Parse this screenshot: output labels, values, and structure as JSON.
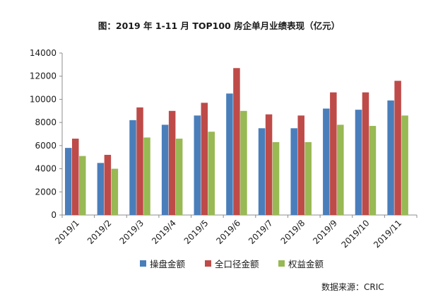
{
  "chart_data": {
    "type": "bar",
    "title": "图：2019 年 1-11 月 TOP100 房企单月业绩表现（亿元）",
    "categories": [
      "2019/1",
      "2019/2",
      "2019/3",
      "2019/4",
      "2019/5",
      "2019/6",
      "2019/7",
      "2019/8",
      "2019/9",
      "2019/10",
      "2019/11"
    ],
    "series": [
      {
        "name": "操盘金额",
        "color": "#4a7ebb",
        "values": [
          5800,
          4500,
          8200,
          7800,
          8600,
          10500,
          7500,
          7500,
          9200,
          9100,
          9900
        ]
      },
      {
        "name": "全口径金额",
        "color": "#be4b48",
        "values": [
          6600,
          5200,
          9300,
          9000,
          9700,
          12700,
          8700,
          8600,
          10600,
          10600,
          11600
        ]
      },
      {
        "name": "权益金额",
        "color": "#98b954",
        "values": [
          5100,
          4000,
          6700,
          6600,
          7200,
          9000,
          6300,
          6300,
          7800,
          7700,
          8600
        ]
      }
    ],
    "ylim": [
      0,
      14000
    ],
    "yticks": [
      0,
      2000,
      4000,
      6000,
      8000,
      10000,
      12000,
      14000
    ],
    "grid": false,
    "legend": "bottom"
  },
  "source": "数据来源：CRIC"
}
